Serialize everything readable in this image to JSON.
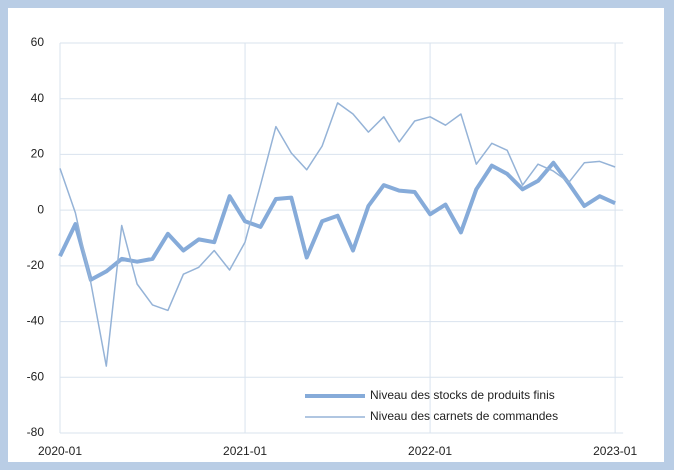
{
  "chart_data": {
    "type": "line",
    "categories": [
      "2020-01",
      null,
      null,
      null,
      null,
      null,
      null,
      null,
      null,
      null,
      null,
      null,
      "2021-01",
      null,
      null,
      null,
      null,
      null,
      null,
      null,
      null,
      null,
      null,
      null,
      "2022-01",
      null,
      null,
      null,
      null,
      null,
      null,
      null,
      null,
      null,
      null,
      null,
      "2023-01"
    ],
    "series": [
      {
        "name": "Niveau des stocks de produits finis",
        "color": "#86abd9",
        "width": 4,
        "values": [
          -16.5,
          -5,
          -25,
          -22,
          -17.5,
          -18.5,
          -17.5,
          -8.5,
          -14.5,
          -10.5,
          -11.5,
          5,
          -4,
          -6,
          4,
          4.5,
          -17,
          -4,
          -2,
          -14.5,
          1.5,
          9,
          7,
          6.5,
          -1.5,
          2,
          -8,
          7.5,
          16,
          13,
          7.5,
          10.5,
          17,
          9.5,
          1.5,
          5,
          2.5
        ]
      },
      {
        "name": "Niveau des carnets de commandes",
        "color": "#95b3d7",
        "width": 1.5,
        "values": [
          15,
          -1,
          -26,
          -56,
          -5.5,
          -26.5,
          -34,
          -36,
          -23,
          -20.5,
          -14.5,
          -21.5,
          -11.5,
          9,
          30,
          20.5,
          14.5,
          23,
          38.5,
          34.5,
          28,
          33.5,
          24.5,
          32,
          33.5,
          30.5,
          34.5,
          16.5,
          24,
          21.5,
          9,
          16.5,
          14,
          10,
          17,
          17.5,
          15.5
        ]
      }
    ],
    "ylim": [
      -80,
      60
    ],
    "yticks": [
      -80,
      -60,
      -40,
      -20,
      0,
      20,
      40,
      60
    ],
    "grid": true,
    "legend": "lower-right"
  }
}
